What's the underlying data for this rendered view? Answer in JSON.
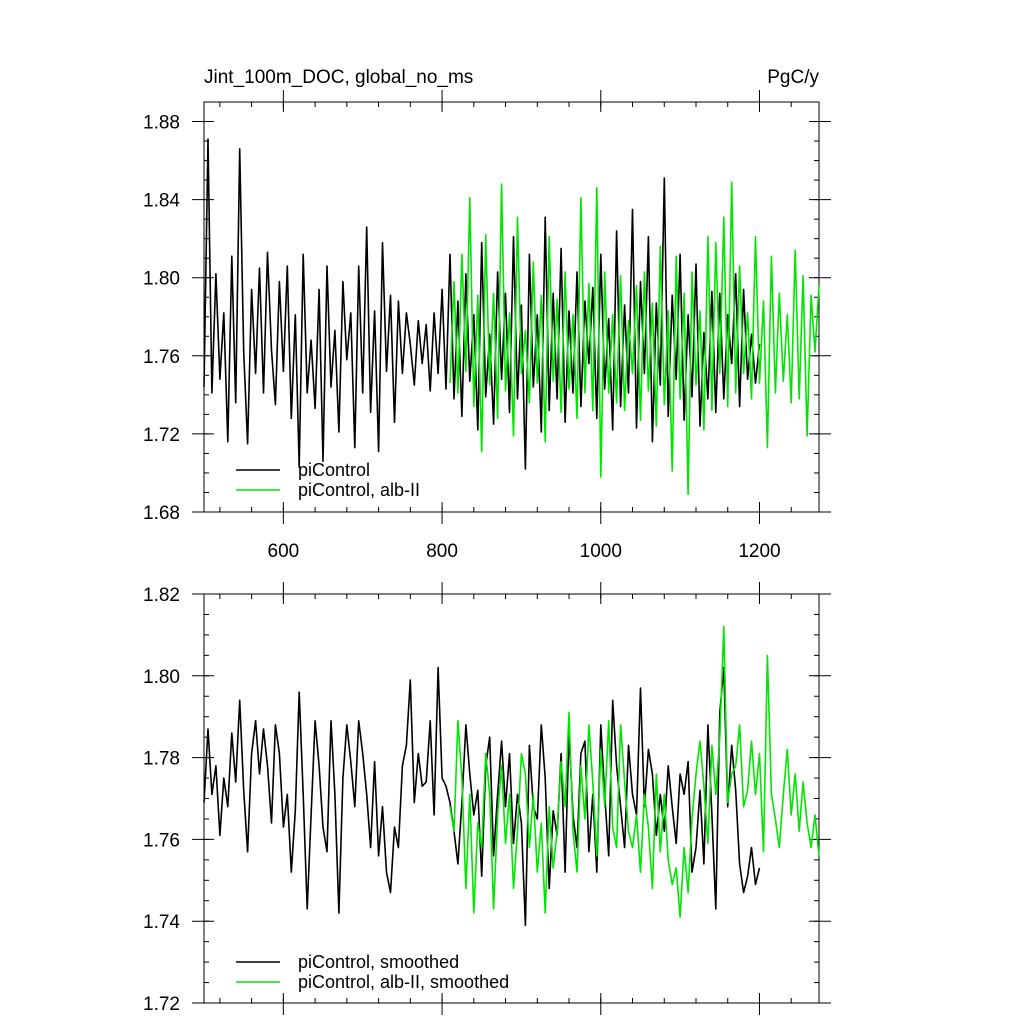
{
  "chart_data": [
    {
      "type": "line",
      "title": "Jint_100m_DOC, global_no_ms",
      "units": "PgC/y",
      "xlim": [
        500,
        1275
      ],
      "ylim": [
        1.68,
        1.89
      ],
      "xticks": [
        600,
        800,
        1000,
        1200
      ],
      "yticks": [
        1.68,
        1.72,
        1.76,
        1.8,
        1.84,
        1.88
      ],
      "ytick_labels": [
        "1.68",
        "1.72",
        "1.76",
        "1.80",
        "1.84",
        "1.88"
      ],
      "show_xtick_labels": true,
      "legend_position": "bottom-left",
      "series": [
        {
          "name": "piControl",
          "color": "#000000",
          "x": [
            500,
            505,
            510,
            515,
            520,
            525,
            530,
            535,
            540,
            545,
            550,
            555,
            560,
            565,
            570,
            575,
            580,
            585,
            590,
            595,
            600,
            605,
            610,
            615,
            620,
            625,
            630,
            635,
            640,
            645,
            650,
            655,
            660,
            665,
            670,
            675,
            680,
            685,
            690,
            695,
            700,
            705,
            710,
            715,
            720,
            725,
            730,
            735,
            740,
            745,
            750,
            755,
            760,
            765,
            770,
            775,
            780,
            785,
            790,
            795,
            800,
            805,
            810,
            815,
            820,
            825,
            830,
            835,
            840,
            845,
            850,
            855,
            860,
            865,
            870,
            875,
            880,
            885,
            890,
            895,
            900,
            905,
            910,
            915,
            920,
            925,
            930,
            935,
            940,
            945,
            950,
            955,
            960,
            965,
            970,
            975,
            980,
            985,
            990,
            995,
            1000,
            1005,
            1010,
            1015,
            1020,
            1025,
            1030,
            1035,
            1040,
            1045,
            1050,
            1055,
            1060,
            1065,
            1070,
            1075,
            1080,
            1085,
            1090,
            1095,
            1100,
            1105,
            1110,
            1115,
            1120,
            1125,
            1130,
            1135,
            1140,
            1145,
            1150,
            1155,
            1160,
            1165,
            1170,
            1175,
            1180,
            1185,
            1190,
            1195,
            1200
          ],
          "y": [
            1.744,
            1.871,
            1.741,
            1.802,
            1.748,
            1.782,
            1.716,
            1.811,
            1.736,
            1.866,
            1.762,
            1.715,
            1.794,
            1.751,
            1.805,
            1.741,
            1.813,
            1.763,
            1.735,
            1.798,
            1.752,
            1.806,
            1.728,
            1.781,
            1.703,
            1.812,
            1.741,
            1.768,
            1.733,
            1.794,
            1.706,
            1.806,
            1.744,
            1.773,
            1.721,
            1.798,
            1.758,
            1.782,
            1.713,
            1.806,
            1.741,
            1.826,
            1.731,
            1.783,
            1.711,
            1.818,
            1.752,
            1.791,
            1.726,
            1.788,
            1.751,
            1.782,
            1.766,
            1.745,
            1.778,
            1.756,
            1.776,
            1.742,
            1.782,
            1.751,
            1.794,
            1.743,
            1.812,
            1.738,
            1.788,
            1.729,
            1.802,
            1.747,
            1.781,
            1.722,
            1.818,
            1.739,
            1.771,
            1.725,
            1.803,
            1.748,
            1.792,
            1.731,
            1.821,
            1.738,
            1.786,
            1.702,
            1.812,
            1.744,
            1.781,
            1.721,
            1.831,
            1.732,
            1.792,
            1.738,
            1.815,
            1.726,
            1.783,
            1.741,
            1.803,
            1.734,
            1.788,
            1.756,
            1.795,
            1.728,
            1.812,
            1.743,
            1.779,
            1.722,
            1.824,
            1.734,
            1.786,
            1.741,
            1.835,
            1.723,
            1.798,
            1.751,
            1.821,
            1.716,
            1.787,
            1.745,
            1.851,
            1.729,
            1.791,
            1.748,
            1.812,
            1.727,
            1.781,
            1.739,
            1.807,
            1.724,
            1.772,
            1.738,
            1.793,
            1.731,
            1.792,
            1.738,
            1.781,
            1.756,
            1.802,
            1.734,
            1.794,
            1.748,
            1.771,
            1.746,
            1.766
          ]
        },
        {
          "name": "piControl, alb-II",
          "color": "#00e600",
          "x": [
            810,
            815,
            820,
            825,
            830,
            835,
            840,
            845,
            850,
            855,
            860,
            865,
            870,
            875,
            880,
            885,
            890,
            895,
            900,
            905,
            910,
            915,
            920,
            925,
            930,
            935,
            940,
            945,
            950,
            955,
            960,
            965,
            970,
            975,
            980,
            985,
            990,
            995,
            1000,
            1005,
            1010,
            1015,
            1020,
            1025,
            1030,
            1035,
            1040,
            1045,
            1050,
            1055,
            1060,
            1065,
            1070,
            1075,
            1080,
            1085,
            1090,
            1095,
            1100,
            1105,
            1110,
            1115,
            1120,
            1125,
            1130,
            1135,
            1140,
            1145,
            1150,
            1155,
            1160,
            1165,
            1170,
            1175,
            1180,
            1185,
            1190,
            1195,
            1200,
            1205,
            1210,
            1215,
            1220,
            1225,
            1230,
            1235,
            1240,
            1245,
            1250,
            1255,
            1260,
            1265,
            1270,
            1275
          ],
          "y": [
            1.746,
            1.798,
            1.741,
            1.812,
            1.752,
            1.841,
            1.734,
            1.791,
            1.711,
            1.822,
            1.745,
            1.792,
            1.728,
            1.848,
            1.742,
            1.782,
            1.719,
            1.831,
            1.751,
            1.773,
            1.736,
            1.808,
            1.746,
            1.791,
            1.716,
            1.821,
            1.747,
            1.789,
            1.731,
            1.803,
            1.743,
            1.781,
            1.728,
            1.841,
            1.741,
            1.797,
            1.732,
            1.846,
            1.698,
            1.803,
            1.741,
            1.781,
            1.736,
            1.801,
            1.732,
            1.778,
            1.751,
            1.796,
            1.727,
            1.803,
            1.742,
            1.787,
            1.724,
            1.816,
            1.735,
            1.783,
            1.701,
            1.811,
            1.738,
            1.792,
            1.689,
            1.803,
            1.745,
            1.783,
            1.722,
            1.821,
            1.732,
            1.818,
            1.751,
            1.831,
            1.734,
            1.849,
            1.741,
            1.806,
            1.751,
            1.782,
            1.738,
            1.821,
            1.746,
            1.788,
            1.713,
            1.811,
            1.741,
            1.792,
            1.747,
            1.781,
            1.736,
            1.814,
            1.738,
            1.801,
            1.719,
            1.791,
            1.762,
            1.796
          ]
        }
      ]
    },
    {
      "type": "line",
      "title": "",
      "xlim": [
        500,
        1275
      ],
      "ylim": [
        1.72,
        1.82
      ],
      "xticks": [
        600,
        800,
        1000,
        1200
      ],
      "yticks": [
        1.72,
        1.74,
        1.76,
        1.78,
        1.8,
        1.82
      ],
      "ytick_labels": [
        "1.72",
        "1.74",
        "1.76",
        "1.78",
        "1.80",
        "1.82"
      ],
      "show_xtick_labels": false,
      "legend_position": "bottom-left",
      "series": [
        {
          "name": "piControl, smoothed",
          "color": "#000000",
          "x": [
            500,
            505,
            510,
            515,
            520,
            525,
            530,
            535,
            540,
            545,
            550,
            555,
            560,
            565,
            570,
            575,
            580,
            585,
            590,
            595,
            600,
            605,
            610,
            615,
            620,
            625,
            630,
            635,
            640,
            645,
            650,
            655,
            660,
            665,
            670,
            675,
            680,
            685,
            690,
            695,
            700,
            705,
            710,
            715,
            720,
            725,
            730,
            735,
            740,
            745,
            750,
            755,
            760,
            765,
            770,
            775,
            780,
            785,
            790,
            795,
            800,
            805,
            810,
            815,
            820,
            825,
            830,
            835,
            840,
            845,
            850,
            855,
            860,
            865,
            870,
            875,
            880,
            885,
            890,
            895,
            900,
            905,
            910,
            915,
            920,
            925,
            930,
            935,
            940,
            945,
            950,
            955,
            960,
            965,
            970,
            975,
            980,
            985,
            990,
            995,
            1000,
            1005,
            1010,
            1015,
            1020,
            1025,
            1030,
            1035,
            1040,
            1045,
            1050,
            1055,
            1060,
            1065,
            1070,
            1075,
            1080,
            1085,
            1090,
            1095,
            1100,
            1105,
            1110,
            1115,
            1120,
            1125,
            1130,
            1135,
            1140,
            1145,
            1150,
            1155,
            1160,
            1165,
            1170,
            1175,
            1180,
            1185,
            1190,
            1195,
            1200
          ],
          "y": [
            1.769,
            1.787,
            1.771,
            1.778,
            1.761,
            1.775,
            1.768,
            1.786,
            1.774,
            1.794,
            1.772,
            1.757,
            1.781,
            1.789,
            1.776,
            1.787,
            1.778,
            1.764,
            1.788,
            1.781,
            1.763,
            1.771,
            1.752,
            1.767,
            1.796,
            1.771,
            1.743,
            1.766,
            1.789,
            1.778,
            1.763,
            1.757,
            1.789,
            1.771,
            1.742,
            1.775,
            1.788,
            1.779,
            1.768,
            1.789,
            1.781,
            1.771,
            1.758,
            1.779,
            1.756,
            1.768,
            1.752,
            1.747,
            1.763,
            1.758,
            1.778,
            1.783,
            1.799,
            1.769,
            1.781,
            1.773,
            1.774,
            1.789,
            1.766,
            1.802,
            1.775,
            1.773,
            1.769,
            1.762,
            1.754,
            1.769,
            1.788,
            1.776,
            1.766,
            1.772,
            1.751,
            1.778,
            1.785,
            1.756,
            1.771,
            1.784,
            1.768,
            1.781,
            1.759,
            1.771,
            1.764,
            1.739,
            1.783,
            1.768,
            1.765,
            1.788,
            1.775,
            1.748,
            1.767,
            1.761,
            1.781,
            1.752,
            1.786,
            1.766,
            1.758,
            1.781,
            1.784,
            1.757,
            1.771,
            1.752,
            1.788,
            1.771,
            1.756,
            1.794,
            1.778,
            1.768,
            1.758,
            1.783,
            1.771,
            1.766,
            1.797,
            1.768,
            1.782,
            1.776,
            1.761,
            1.771,
            1.762,
            1.778,
            1.768,
            1.759,
            1.776,
            1.771,
            1.779,
            1.752,
            1.758,
            1.772,
            1.754,
            1.788,
            1.766,
            1.743,
            1.791,
            1.802,
            1.768,
            1.783,
            1.772,
            1.754,
            1.747,
            1.751,
            1.758,
            1.749,
            1.753
          ]
        },
        {
          "name": "piControl, alb-II, smoothed",
          "color": "#00e600",
          "x": [
            810,
            815,
            820,
            825,
            830,
            835,
            840,
            845,
            850,
            855,
            860,
            865,
            870,
            875,
            880,
            885,
            890,
            895,
            900,
            905,
            910,
            915,
            920,
            925,
            930,
            935,
            940,
            945,
            950,
            955,
            960,
            965,
            970,
            975,
            980,
            985,
            990,
            995,
            1000,
            1005,
            1010,
            1015,
            1020,
            1025,
            1030,
            1035,
            1040,
            1045,
            1050,
            1055,
            1060,
            1065,
            1070,
            1075,
            1080,
            1085,
            1090,
            1095,
            1100,
            1105,
            1110,
            1115,
            1120,
            1125,
            1130,
            1135,
            1140,
            1145,
            1150,
            1155,
            1160,
            1165,
            1170,
            1175,
            1180,
            1185,
            1190,
            1195,
            1200,
            1205,
            1210,
            1215,
            1220,
            1225,
            1230,
            1235,
            1240,
            1245,
            1250,
            1255,
            1260,
            1265,
            1270,
            1275
          ],
          "y": [
            1.768,
            1.762,
            1.789,
            1.775,
            1.748,
            1.771,
            1.742,
            1.764,
            1.758,
            1.781,
            1.771,
            1.743,
            1.766,
            1.778,
            1.759,
            1.771,
            1.748,
            1.762,
            1.781,
            1.776,
            1.758,
            1.771,
            1.752,
            1.764,
            1.742,
            1.768,
            1.753,
            1.762,
            1.779,
            1.768,
            1.791,
            1.762,
            1.752,
            1.778,
            1.765,
            1.788,
            1.774,
            1.756,
            1.782,
            1.768,
            1.789,
            1.763,
            1.758,
            1.788,
            1.774,
            1.762,
            1.758,
            1.766,
            1.752,
            1.771,
            1.763,
            1.748,
            1.776,
            1.757,
            1.771,
            1.755,
            1.749,
            1.753,
            1.741,
            1.758,
            1.747,
            1.765,
            1.776,
            1.784,
            1.773,
            1.759,
            1.783,
            1.771,
            1.785,
            1.812,
            1.769,
            1.776,
            1.778,
            1.788,
            1.768,
            1.772,
            1.784,
            1.771,
            1.781,
            1.757,
            1.805,
            1.771,
            1.765,
            1.758,
            1.771,
            1.782,
            1.766,
            1.776,
            1.762,
            1.774,
            1.764,
            1.758,
            1.766,
            1.756
          ]
        }
      ]
    }
  ]
}
